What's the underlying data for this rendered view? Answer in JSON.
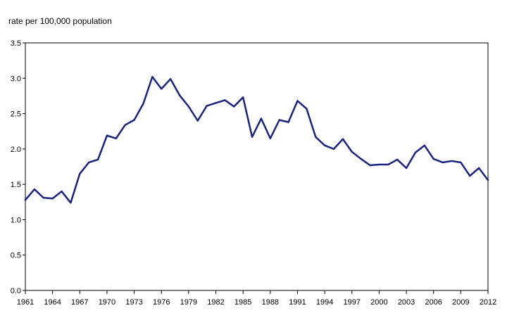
{
  "chart_data": {
    "type": "line",
    "ylabel": "rate per 100,000 population",
    "ylim": [
      0,
      3.5
    ],
    "yticks": [
      "0.0",
      "0.5",
      "1.0",
      "1.5",
      "2.0",
      "2.5",
      "3.0",
      "3.5"
    ],
    "xlim": [
      1961,
      2012
    ],
    "xticks": [
      "1961",
      "1964",
      "1967",
      "1970",
      "1973",
      "1976",
      "1979",
      "1982",
      "1985",
      "1988",
      "1991",
      "1994",
      "1997",
      "2000",
      "2003",
      "2006",
      "2009",
      "2012"
    ],
    "grid": false,
    "series": [
      {
        "color": "#1a237e",
        "x": [
          1961,
          1962,
          1963,
          1964,
          1965,
          1966,
          1967,
          1968,
          1969,
          1970,
          1971,
          1972,
          1973,
          1974,
          1975,
          1976,
          1977,
          1978,
          1979,
          1980,
          1981,
          1982,
          1983,
          1984,
          1985,
          1986,
          1987,
          1988,
          1989,
          1990,
          1991,
          1992,
          1993,
          1994,
          1995,
          1996,
          1997,
          1998,
          1999,
          2000,
          2001,
          2002,
          2003,
          2004,
          2005,
          2006,
          2007,
          2008,
          2009,
          2010,
          2011,
          2012
        ],
        "values": [
          1.28,
          1.43,
          1.31,
          1.3,
          1.4,
          1.24,
          1.65,
          1.81,
          1.85,
          2.19,
          2.15,
          2.34,
          2.41,
          2.64,
          3.02,
          2.85,
          2.99,
          2.76,
          2.6,
          2.4,
          2.61,
          2.65,
          2.69,
          2.6,
          2.73,
          2.17,
          2.43,
          2.15,
          2.41,
          2.38,
          2.68,
          2.57,
          2.17,
          2.05,
          2.0,
          2.14,
          1.96,
          1.86,
          1.77,
          1.78,
          1.78,
          1.85,
          1.73,
          1.95,
          2.05,
          1.86,
          1.81,
          1.83,
          1.81,
          1.62,
          1.73,
          1.56
        ]
      }
    ]
  }
}
